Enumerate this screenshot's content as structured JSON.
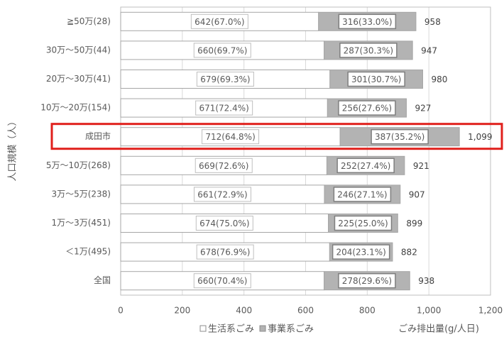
{
  "chart_data": {
    "type": "stacked-bar-horizontal",
    "categories": [
      "≧50万(28)",
      "30万～50万(44)",
      "20万～30万(41)",
      "10万～20万(154)",
      "成田市",
      "5万～10万(268)",
      "3万～5万(238)",
      "1万～3万(451)",
      "＜1万(495)",
      "全国"
    ],
    "series": [
      {
        "name": "生活系ごみ",
        "color": "#ffffff",
        "values": [
          642,
          660,
          679,
          671,
          712,
          669,
          661,
          674,
          678,
          660
        ],
        "value_labels": [
          "642(67.0%)",
          "660(69.7%)",
          "679(69.3%)",
          "671(72.4%)",
          "712(64.8%)",
          "669(72.6%)",
          "661(72.9%)",
          "674(75.0%)",
          "678(76.9%)",
          "660(70.4%)"
        ]
      },
      {
        "name": "事業系ごみ",
        "color": "#b3b3b3",
        "values": [
          316,
          287,
          301,
          256,
          387,
          252,
          246,
          225,
          204,
          278
        ],
        "value_labels": [
          "316(33.0%)",
          "287(30.3%)",
          "301(30.7%)",
          "256(27.6%)",
          "387(35.2%)",
          "252(27.4%)",
          "246(27.1%)",
          "225(25.0%)",
          "204(23.1%)",
          "278(29.6%)"
        ]
      }
    ],
    "totals": [
      958,
      947,
      980,
      927,
      {
        "value": 1099,
        "label": "1,099"
      },
      921,
      907,
      899,
      882,
      938
    ],
    "xlim": [
      0,
      1200
    ],
    "xticks": [
      0,
      200,
      400,
      600,
      800,
      {
        "value": 1000,
        "label": "1,000"
      },
      {
        "value": 1200,
        "label": "1,200"
      }
    ],
    "x_label": "ごみ排出量(g/人日)",
    "y_label": "人口規模（人）",
    "grid": true,
    "legend": "bottom",
    "highlight": {
      "category_index": 4,
      "color": "#e0201c"
    }
  }
}
